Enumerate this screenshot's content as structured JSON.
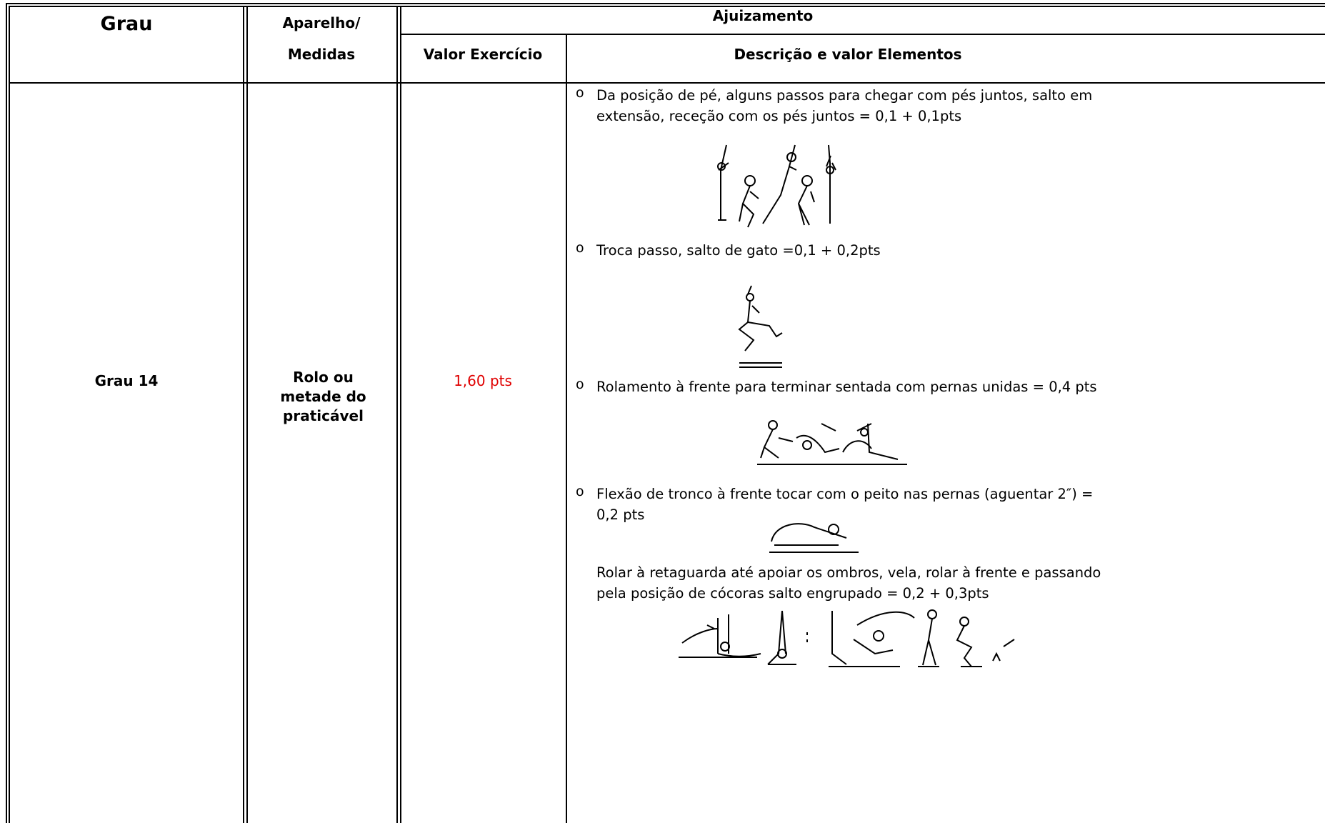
{
  "header": {
    "grau": "Grau",
    "aparelho": "Aparelho/",
    "medidas": "Medidas",
    "ajuizamento": "Ajuizamento",
    "valor_exercicio": "Valor Exercício",
    "descricao": "Descrição e valor Elementos"
  },
  "row": {
    "grau": "Grau 14",
    "aparelho": "Rolo ou metade do praticável",
    "valor": "1,60 pts",
    "items": [
      "Da posição de pé, alguns passos para chegar com pés juntos, salto em extensão, receção com os pés juntos = 0,1 + 0,1pts",
      "Troca passo, salto de gato =0,1 + 0,2pts",
      "Rolamento à frente para terminar sentada com pernas unidas = 0,4 pts",
      "Flexão de tronco à frente tocar com o peito nas pernas (aguentar 2″) = 0,2 pts",
      "Rolar à retaguarda até apoiar os ombros, vela, rolar à frente e passando pela posição de cócoras salto engrupado = 0,2 + 0,3pts"
    ]
  }
}
